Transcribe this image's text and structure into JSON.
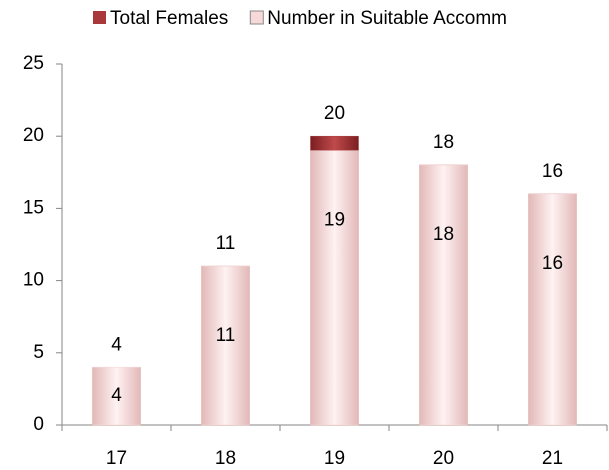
{
  "chart_data": {
    "type": "bar",
    "categories": [
      "17",
      "18",
      "19",
      "20",
      "21"
    ],
    "series": [
      {
        "name": "Total Females",
        "color": "#a8383a",
        "values": [
          4,
          11,
          20,
          18,
          16
        ]
      },
      {
        "name": "Number in Suitable Accomm",
        "color": "#f7d9d9",
        "values": [
          4,
          11,
          19,
          18,
          16
        ]
      }
    ],
    "ylim": [
      0,
      25
    ],
    "yticks": [
      0,
      5,
      10,
      15,
      20,
      25
    ],
    "grid": false,
    "legend": "top"
  }
}
